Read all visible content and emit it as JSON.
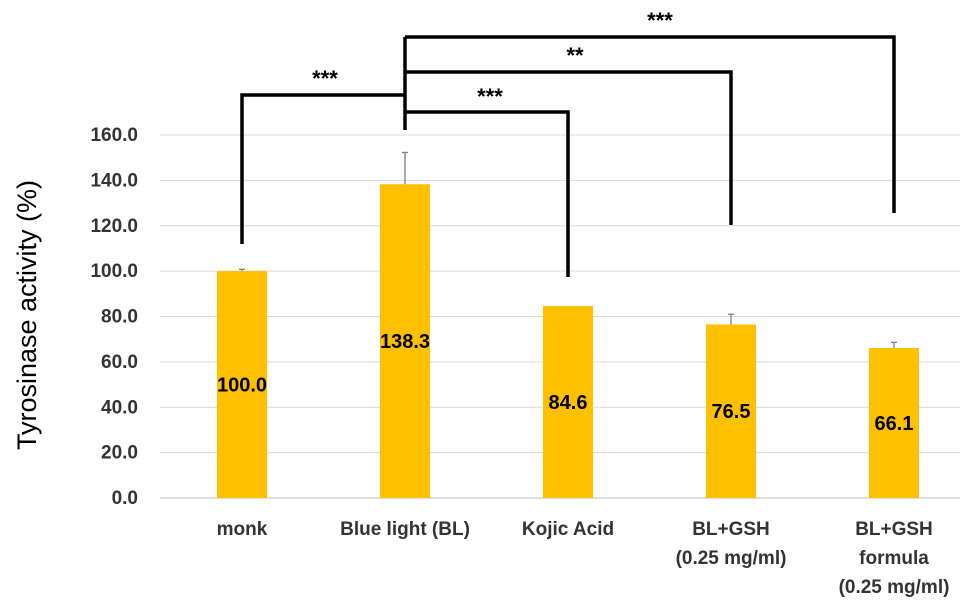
{
  "chart_data": {
    "type": "bar",
    "ylabel": "Tyrosinase activity (%)",
    "ylim": [
      0,
      160
    ],
    "yticks": [
      "0.0",
      "20.0",
      "40.0",
      "60.0",
      "80.0",
      "100.0",
      "120.0",
      "140.0",
      "160.0"
    ],
    "grid": true,
    "bar_color": "#FFC000",
    "categories": [
      [
        "monk"
      ],
      [
        "Blue light (BL)"
      ],
      [
        "Kojic Acid"
      ],
      [
        "BL+GSH",
        "(0.25 mg/ml)"
      ],
      [
        "BL+GSH",
        "formula",
        "(0.25 mg/ml)"
      ]
    ],
    "values": [
      100.0,
      138.3,
      84.6,
      76.5,
      66.1
    ],
    "value_labels": [
      "100.0",
      "138.3",
      "84.6",
      "76.5",
      "66.1"
    ],
    "error": [
      0.8,
      14.0,
      0,
      4.5,
      2.5
    ],
    "significance": [
      {
        "from": 1,
        "to": 0,
        "label": "***"
      },
      {
        "from": 1,
        "to": 2,
        "label": "***"
      },
      {
        "from": 1,
        "to": 3,
        "label": "**"
      },
      {
        "from": 1,
        "to": 4,
        "label": "***"
      }
    ]
  }
}
